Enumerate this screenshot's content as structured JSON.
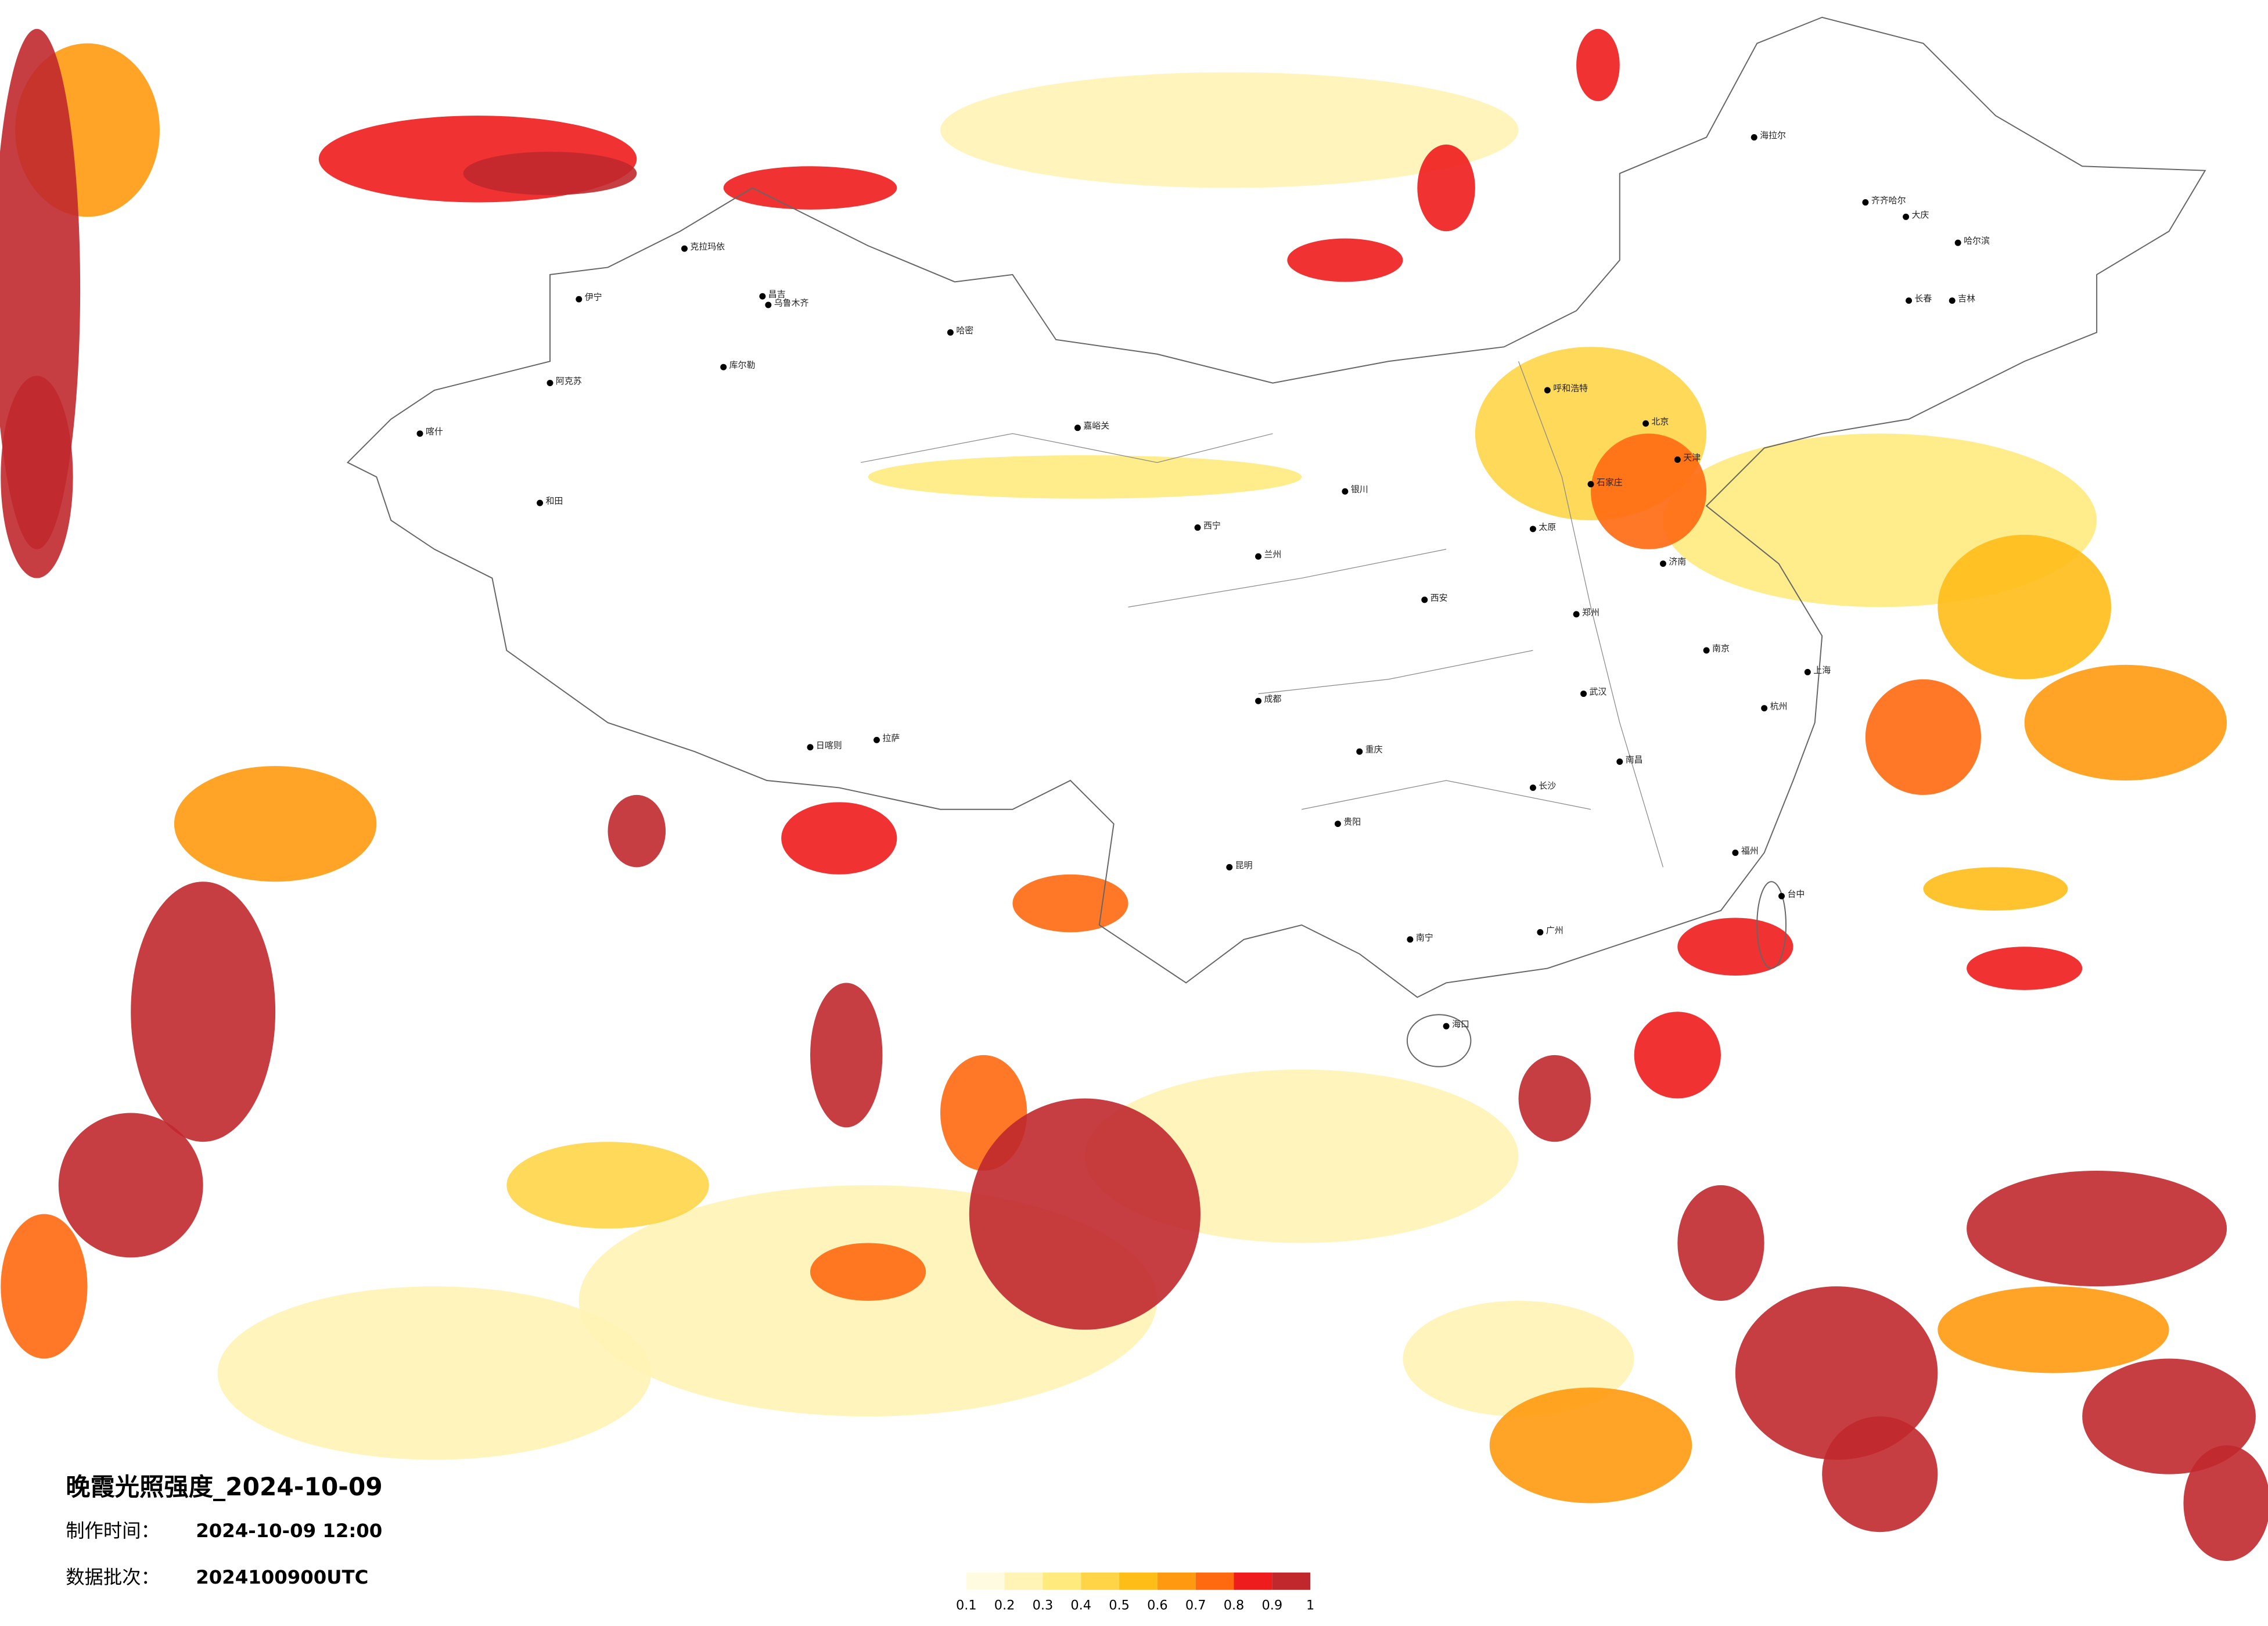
{
  "map": {
    "title": "晚霞光照强度_2024-10-09",
    "made_time_label": "制作时间：",
    "made_time": "2024-10-09 12:00",
    "batch_label": "数据批次：",
    "batch": "2024100900UTC"
  },
  "legend": {
    "colors": [
      "#fffbe0",
      "#fff4b5",
      "#ffea7d",
      "#ffd547",
      "#ffbd18",
      "#ff9a10",
      "#ff6910",
      "#ee1c1c",
      "#c0282e"
    ],
    "ticks": [
      0.1,
      0.2,
      0.3,
      0.4,
      0.5,
      0.6,
      0.7,
      0.8,
      0.9,
      1
    ]
  },
  "cities": [
    "克拉玛依",
    "昌吉",
    "乌鲁木齐",
    "伊宁",
    "阿克苏",
    "喀什",
    "和田",
    "库尔勒",
    "哈密",
    "嘉峪关",
    "拉萨",
    "日喀则",
    "海拉尔",
    "齐齐哈尔",
    "哈尔滨",
    "大庆",
    "长春",
    "吉林",
    "呼和浩特",
    "北京",
    "天津",
    "石家庄",
    "太原",
    "济南",
    "郑州",
    "西安",
    "兰州",
    "西宁",
    "银川",
    "成都",
    "重庆",
    "武汉",
    "南京",
    "上海",
    "杭州",
    "长沙",
    "南昌",
    "福州",
    "贵阳",
    "昆明",
    "南宁",
    "广州",
    "海口",
    "台中"
  ]
}
